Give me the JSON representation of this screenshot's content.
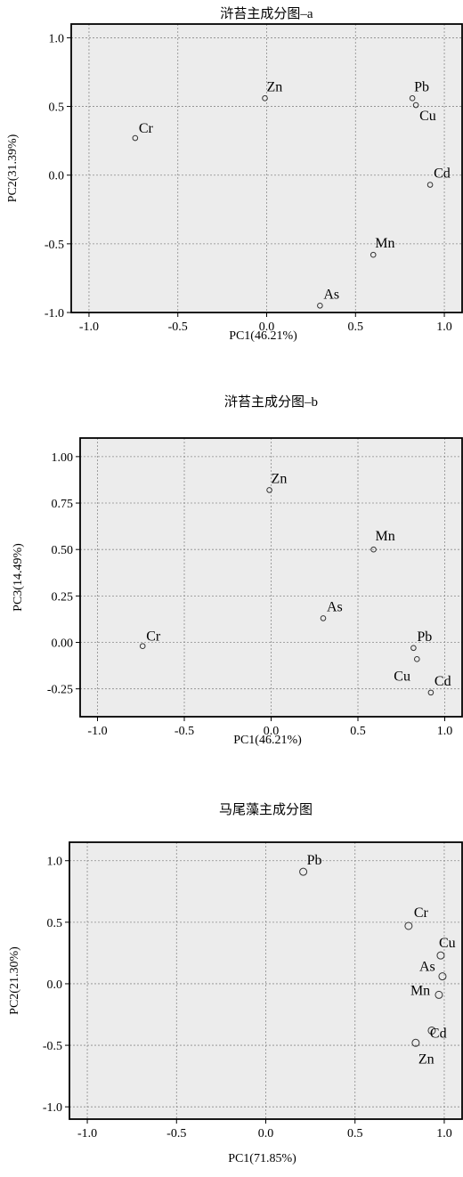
{
  "chart_data": [
    {
      "type": "scatter",
      "title": "浒苔主成分图–a",
      "xlabel": "PC1(46.21%)",
      "ylabel": "PC2(31.39%)",
      "xlim": [
        -1.1,
        1.1
      ],
      "ylim": [
        -1.0,
        1.1
      ],
      "xticks": [
        -1.0,
        -0.5,
        0.0,
        0.5,
        1.0
      ],
      "xtick_labels": [
        "-1.0",
        "-0.5",
        "0.0",
        "0.5",
        "1.0"
      ],
      "yticks": [
        -1.0,
        -0.5,
        0.0,
        0.5,
        1.0
      ],
      "ytick_labels": [
        "-1.0",
        "-0.5",
        "0.0",
        "0.5",
        "1.0"
      ],
      "grid": true,
      "points": [
        {
          "label": "Zn",
          "x": -0.01,
          "y": 0.56
        },
        {
          "label": "Pb",
          "x": 0.82,
          "y": 0.56
        },
        {
          "label": "Cu",
          "x": 0.84,
          "y": 0.51
        },
        {
          "label": "Cr",
          "x": -0.74,
          "y": 0.27
        },
        {
          "label": "Cd",
          "x": 0.92,
          "y": -0.07
        },
        {
          "label": "Mn",
          "x": 0.6,
          "y": -0.58
        },
        {
          "label": "As",
          "x": 0.3,
          "y": -0.95
        }
      ]
    },
    {
      "type": "scatter",
      "title": "浒苔主成分图–b",
      "xlabel": "PC1(46.21%)",
      "ylabel": "PC3(14.49%)",
      "xlim": [
        -1.1,
        1.1
      ],
      "ylim": [
        -0.4,
        1.1
      ],
      "xticks": [
        -1.0,
        -0.5,
        0.0,
        0.5,
        1.0
      ],
      "xtick_labels": [
        "-1.0",
        "-0.5",
        "0.0",
        "0.5",
        "1.0"
      ],
      "yticks": [
        -0.25,
        0.0,
        0.25,
        0.5,
        0.75,
        1.0
      ],
      "ytick_labels": [
        "-0.25",
        "0.00",
        "0.25",
        "0.50",
        "0.75",
        "1.00"
      ],
      "grid": true,
      "points": [
        {
          "label": "Zn",
          "x": -0.01,
          "y": 0.82
        },
        {
          "label": "Mn",
          "x": 0.59,
          "y": 0.5
        },
        {
          "label": "As",
          "x": 0.3,
          "y": 0.13
        },
        {
          "label": "Cr",
          "x": -0.74,
          "y": -0.02
        },
        {
          "label": "Pb",
          "x": 0.82,
          "y": -0.03
        },
        {
          "label": "Cu",
          "x": 0.84,
          "y": -0.09
        },
        {
          "label": "Cd",
          "x": 0.92,
          "y": -0.27
        }
      ]
    },
    {
      "type": "scatter",
      "title": "马尾藻主成分图",
      "xlabel": "PC1(71.85%)",
      "ylabel": "PC2(21.30%)",
      "xlim": [
        -1.1,
        1.1
      ],
      "ylim": [
        -1.1,
        1.15
      ],
      "xticks": [
        -1.0,
        -0.5,
        0.0,
        0.5,
        1.0
      ],
      "xtick_labels": [
        "-1.0",
        "-0.5",
        "0.0",
        "0.5",
        "1.0"
      ],
      "yticks": [
        -1.0,
        -0.5,
        0.0,
        0.5,
        1.0
      ],
      "ytick_labels": [
        "-1.0",
        "-0.5",
        "0.0",
        "0.5",
        "1.0"
      ],
      "grid": true,
      "points": [
        {
          "label": "Pb",
          "x": 0.21,
          "y": 0.91
        },
        {
          "label": "Cr",
          "x": 0.8,
          "y": 0.47
        },
        {
          "label": "Cu",
          "x": 0.98,
          "y": 0.23
        },
        {
          "label": "As",
          "x": 0.99,
          "y": 0.06
        },
        {
          "label": "Mn",
          "x": 0.97,
          "y": -0.09
        },
        {
          "label": "Cd",
          "x": 0.93,
          "y": -0.38
        },
        {
          "label": "Zn",
          "x": 0.84,
          "y": -0.48
        }
      ]
    }
  ]
}
